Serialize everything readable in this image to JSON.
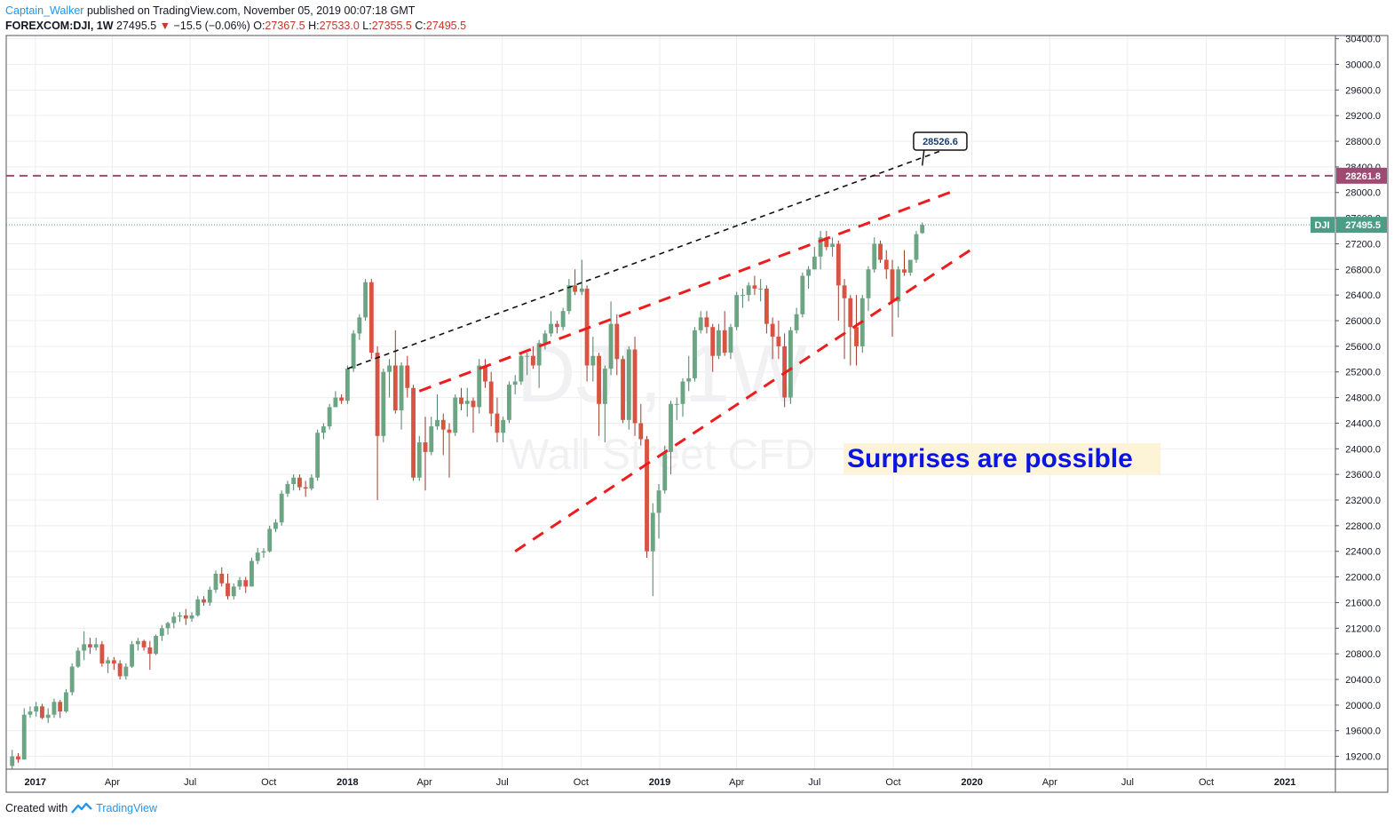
{
  "header": {
    "author": "Captain_Walker",
    "published": " published on TradingView.com, November 05, 2019 00:07:18 GMT",
    "symbol": "FOREXCOM:DJI, 1W",
    "last": "27495.5",
    "arrow": "▼",
    "change": "−15.5 (−0.06%)",
    "o_label": "O:",
    "o": "27367.5",
    "h_label": "H:",
    "h": "27533.0",
    "l_label": "L:",
    "l": "27355.5",
    "c_label": "C:",
    "c": "27495.5"
  },
  "footer": {
    "created": "Created with",
    "brand": "TradingView"
  },
  "colors": {
    "up": "#6ba583",
    "down": "#d75442",
    "trend_red": "#ee1c1c",
    "trend_black": "#111111",
    "resistance": "#9c4b73",
    "last_price": "#4c9d86",
    "annotation_bg": "#fdf3d6",
    "annotation_text": "#0a14e6"
  },
  "chart_data": {
    "type": "candlestick",
    "interval": "1W",
    "watermark": {
      "symbol": "DJI, 1W",
      "name": "Wall Street CFD"
    },
    "y_axis": {
      "min": 19000,
      "max": 30450,
      "ticks": [
        19200,
        19600,
        20000,
        20400,
        20800,
        21200,
        21600,
        22000,
        22400,
        22800,
        23200,
        23600,
        24000,
        24400,
        24800,
        25200,
        25600,
        26000,
        26400,
        26800,
        27200,
        27600,
        28000,
        28400,
        28800,
        29200,
        29600,
        30000,
        30400
      ]
    },
    "x_axis": {
      "start": "2016-11-28",
      "end": "2021-03-01",
      "ticks": [
        {
          "date": "2017-01-01",
          "label": "2017"
        },
        {
          "date": "2017-04-01",
          "label": "Apr"
        },
        {
          "date": "2017-07-01",
          "label": "Jul"
        },
        {
          "date": "2017-10-01",
          "label": "Oct"
        },
        {
          "date": "2018-01-01",
          "label": "2018"
        },
        {
          "date": "2018-04-01",
          "label": "Apr"
        },
        {
          "date": "2018-07-01",
          "label": "Jul"
        },
        {
          "date": "2018-10-01",
          "label": "Oct"
        },
        {
          "date": "2019-01-01",
          "label": "2019"
        },
        {
          "date": "2019-04-01",
          "label": "Apr"
        },
        {
          "date": "2019-07-01",
          "label": "Jul"
        },
        {
          "date": "2019-10-01",
          "label": "Oct"
        },
        {
          "date": "2020-01-01",
          "label": "2020"
        },
        {
          "date": "2020-04-01",
          "label": "Apr"
        },
        {
          "date": "2020-07-01",
          "label": "Jul"
        },
        {
          "date": "2020-10-01",
          "label": "Oct"
        },
        {
          "date": "2021-01-01",
          "label": "2021"
        }
      ]
    },
    "series_name": "DJI",
    "candles": [
      [
        "2016-12-05",
        19050,
        19300,
        19000,
        19200
      ],
      [
        "2016-12-12",
        19200,
        19250,
        19100,
        19150
      ],
      [
        "2016-12-19",
        19150,
        19950,
        19150,
        19850
      ],
      [
        "2016-12-26",
        19850,
        19980,
        19800,
        19900
      ],
      [
        "2017-01-02",
        19900,
        20050,
        19820,
        19980
      ],
      [
        "2017-01-09",
        19980,
        20020,
        19780,
        19800
      ],
      [
        "2017-01-16",
        19800,
        19950,
        19720,
        19850
      ],
      [
        "2017-01-23",
        19850,
        20100,
        19800,
        20050
      ],
      [
        "2017-01-30",
        20050,
        20080,
        19800,
        19900
      ],
      [
        "2017-02-06",
        19900,
        20250,
        19880,
        20200
      ],
      [
        "2017-02-13",
        20200,
        20650,
        20150,
        20600
      ],
      [
        "2017-02-20",
        20600,
        20900,
        20580,
        20850
      ],
      [
        "2017-02-27",
        20850,
        21150,
        20700,
        20950
      ],
      [
        "2017-03-06",
        20950,
        21050,
        20800,
        20900
      ],
      [
        "2017-03-13",
        20900,
        21050,
        20850,
        20950
      ],
      [
        "2017-03-20",
        20950,
        21000,
        20600,
        20650
      ],
      [
        "2017-03-27",
        20650,
        20750,
        20500,
        20700
      ],
      [
        "2017-04-03",
        20700,
        20750,
        20550,
        20650
      ],
      [
        "2017-04-10",
        20650,
        20700,
        20400,
        20450
      ],
      [
        "2017-04-17",
        20450,
        20650,
        20400,
        20600
      ],
      [
        "2017-04-24",
        20600,
        21000,
        20580,
        20950
      ],
      [
        "2017-05-01",
        20950,
        21050,
        20850,
        21000
      ],
      [
        "2017-05-08",
        21000,
        21020,
        20850,
        20900
      ],
      [
        "2017-05-15",
        20900,
        21000,
        20550,
        20800
      ],
      [
        "2017-05-22",
        20800,
        21100,
        20780,
        21080
      ],
      [
        "2017-05-29",
        21080,
        21250,
        21000,
        21200
      ],
      [
        "2017-06-05",
        21200,
        21300,
        21100,
        21280
      ],
      [
        "2017-06-12",
        21280,
        21450,
        21200,
        21380
      ],
      [
        "2017-06-19",
        21380,
        21450,
        21300,
        21400
      ],
      [
        "2017-06-26",
        21400,
        21500,
        21250,
        21350
      ],
      [
        "2017-07-03",
        21350,
        21450,
        21300,
        21400
      ],
      [
        "2017-07-10",
        21400,
        21700,
        21380,
        21650
      ],
      [
        "2017-07-17",
        21650,
        21700,
        21550,
        21600
      ],
      [
        "2017-07-24",
        21600,
        21850,
        21550,
        21800
      ],
      [
        "2017-07-31",
        21800,
        22100,
        21750,
        22050
      ],
      [
        "2017-08-07",
        22050,
        22150,
        21850,
        21900
      ],
      [
        "2017-08-14",
        21900,
        22050,
        21650,
        21700
      ],
      [
        "2017-08-21",
        21700,
        21900,
        21650,
        21850
      ],
      [
        "2017-08-28",
        21850,
        22000,
        21800,
        21950
      ],
      [
        "2017-09-04",
        21950,
        22000,
        21750,
        21850
      ],
      [
        "2017-09-11",
        21850,
        22300,
        21850,
        22250
      ],
      [
        "2017-09-18",
        22250,
        22450,
        22200,
        22380
      ],
      [
        "2017-09-25",
        22380,
        22450,
        22300,
        22400
      ],
      [
        "2017-10-02",
        22400,
        22800,
        22380,
        22750
      ],
      [
        "2017-10-09",
        22750,
        22900,
        22700,
        22850
      ],
      [
        "2017-10-16",
        22850,
        23350,
        22800,
        23300
      ],
      [
        "2017-10-23",
        23300,
        23500,
        23250,
        23450
      ],
      [
        "2017-10-30",
        23450,
        23600,
        23350,
        23550
      ],
      [
        "2017-11-06",
        23550,
        23600,
        23350,
        23400
      ],
      [
        "2017-11-13",
        23400,
        23500,
        23250,
        23380
      ],
      [
        "2017-11-20",
        23380,
        23600,
        23350,
        23550
      ],
      [
        "2017-11-27",
        23550,
        24300,
        23500,
        24250
      ],
      [
        "2017-12-04",
        24250,
        24400,
        24150,
        24350
      ],
      [
        "2017-12-11",
        24350,
        24700,
        24300,
        24650
      ],
      [
        "2017-12-18",
        24650,
        24900,
        24650,
        24800
      ],
      [
        "2017-12-25",
        24800,
        24850,
        24700,
        24750
      ],
      [
        "2018-01-01",
        24750,
        25300,
        24700,
        25250
      ],
      [
        "2018-01-08",
        25250,
        25850,
        25200,
        25800
      ],
      [
        "2018-01-15",
        25800,
        26100,
        25700,
        26050
      ],
      [
        "2018-01-22",
        26050,
        26650,
        26000,
        26600
      ],
      [
        "2018-01-29",
        26600,
        26650,
        25400,
        25500
      ],
      [
        "2018-02-05",
        25500,
        25600,
        23200,
        24200
      ],
      [
        "2018-02-12",
        24200,
        25250,
        24100,
        25200
      ],
      [
        "2018-02-19",
        25200,
        25400,
        24800,
        25300
      ],
      [
        "2018-02-26",
        25300,
        25850,
        24550,
        24600
      ],
      [
        "2018-03-05",
        24600,
        25350,
        24300,
        25300
      ],
      [
        "2018-03-12",
        25300,
        25450,
        24800,
        24950
      ],
      [
        "2018-03-19",
        24950,
        25000,
        23500,
        23550
      ],
      [
        "2018-03-26",
        23550,
        24200,
        23500,
        24100
      ],
      [
        "2018-04-02",
        24100,
        24500,
        23350,
        23950
      ],
      [
        "2018-04-09",
        23950,
        24500,
        23900,
        24350
      ],
      [
        "2018-04-16",
        24350,
        24850,
        24300,
        24450
      ],
      [
        "2018-04-23",
        24450,
        24550,
        23900,
        24300
      ],
      [
        "2018-04-30",
        24300,
        24400,
        23550,
        24250
      ],
      [
        "2018-05-07",
        24250,
        24850,
        24200,
        24800
      ],
      [
        "2018-05-14",
        24800,
        24950,
        24600,
        24700
      ],
      [
        "2018-05-21",
        24700,
        24950,
        24500,
        24750
      ],
      [
        "2018-05-28",
        24750,
        24800,
        24250,
        24650
      ],
      [
        "2018-06-04",
        24650,
        25400,
        24550,
        25300
      ],
      [
        "2018-06-11",
        25300,
        25400,
        24950,
        25050
      ],
      [
        "2018-06-18",
        25050,
        25200,
        24350,
        24550
      ],
      [
        "2018-06-25",
        24550,
        24800,
        24100,
        24250
      ],
      [
        "2018-07-02",
        24250,
        24500,
        24100,
        24450
      ],
      [
        "2018-07-09",
        24450,
        25050,
        24400,
        25000
      ],
      [
        "2018-07-16",
        25000,
        25150,
        24850,
        25050
      ],
      [
        "2018-07-23",
        25050,
        25500,
        25000,
        25450
      ],
      [
        "2018-07-30",
        25450,
        25500,
        25150,
        25450
      ],
      [
        "2018-08-06",
        25450,
        25600,
        25250,
        25300
      ],
      [
        "2018-08-13",
        25300,
        25700,
        24950,
        25650
      ],
      [
        "2018-08-20",
        25650,
        25850,
        25550,
        25800
      ],
      [
        "2018-08-27",
        25800,
        26150,
        25750,
        25950
      ],
      [
        "2018-09-03",
        25950,
        26000,
        25800,
        25900
      ],
      [
        "2018-09-10",
        25900,
        26200,
        25850,
        26150
      ],
      [
        "2018-09-17",
        26150,
        26650,
        26100,
        26550
      ],
      [
        "2018-09-24",
        26550,
        26800,
        26400,
        26450
      ],
      [
        "2018-10-02",
        26450,
        26950,
        26400,
        26500
      ],
      [
        "2018-10-08",
        26500,
        26550,
        25050,
        25300
      ],
      [
        "2018-10-15",
        25300,
        25750,
        25050,
        25450
      ],
      [
        "2018-10-22",
        25450,
        25500,
        24200,
        24700
      ],
      [
        "2018-10-29",
        24700,
        25300,
        24100,
        25250
      ],
      [
        "2018-11-05",
        25250,
        26300,
        25150,
        25950
      ],
      [
        "2018-11-12",
        25950,
        26100,
        25150,
        25400
      ],
      [
        "2018-11-19",
        25400,
        25450,
        24400,
        24450
      ],
      [
        "2018-11-26",
        24450,
        25600,
        24300,
        25550
      ],
      [
        "2018-12-03",
        25550,
        25750,
        24200,
        24400
      ],
      [
        "2018-12-10",
        24400,
        24700,
        24050,
        24150
      ],
      [
        "2018-12-17",
        24150,
        24200,
        22300,
        22400
      ],
      [
        "2018-12-24",
        22400,
        23150,
        21700,
        23000
      ],
      [
        "2018-12-31",
        23000,
        23450,
        22600,
        23350
      ],
      [
        "2019-01-07",
        23350,
        24050,
        23300,
        23950
      ],
      [
        "2019-01-14",
        23950,
        24750,
        23600,
        24700
      ],
      [
        "2019-01-21",
        24700,
        24800,
        24450,
        24700
      ],
      [
        "2019-01-28",
        24700,
        25100,
        24500,
        25050
      ],
      [
        "2019-02-04",
        25050,
        25450,
        24900,
        25100
      ],
      [
        "2019-02-11",
        25100,
        25900,
        25050,
        25850
      ],
      [
        "2019-02-18",
        25850,
        26150,
        25800,
        26050
      ],
      [
        "2019-02-25",
        26050,
        26150,
        25800,
        25900
      ],
      [
        "2019-03-04",
        25900,
        25950,
        25200,
        25450
      ],
      [
        "2019-03-11",
        25450,
        25950,
        25400,
        25850
      ],
      [
        "2019-03-18",
        25850,
        26150,
        25450,
        25500
      ],
      [
        "2019-03-25",
        25500,
        25950,
        25400,
        25900
      ],
      [
        "2019-04-01",
        25900,
        26450,
        25850,
        26400
      ],
      [
        "2019-04-08",
        26400,
        26500,
        26200,
        26400
      ],
      [
        "2019-04-15",
        26400,
        26600,
        26300,
        26550
      ],
      [
        "2019-04-22",
        26550,
        26700,
        26400,
        26500
      ],
      [
        "2019-04-29",
        26500,
        26650,
        26300,
        26500
      ],
      [
        "2019-05-06",
        26500,
        26550,
        25800,
        25950
      ],
      [
        "2019-05-13",
        25950,
        26050,
        25400,
        25750
      ],
      [
        "2019-05-20",
        25750,
        26000,
        25400,
        25600
      ],
      [
        "2019-05-27",
        25600,
        25800,
        24650,
        24800
      ],
      [
        "2019-06-03",
        24800,
        25900,
        24700,
        25850
      ],
      [
        "2019-06-10",
        25850,
        26200,
        25800,
        26100
      ],
      [
        "2019-06-17",
        26100,
        26750,
        26050,
        26700
      ],
      [
        "2019-06-24",
        26700,
        26850,
        26500,
        26800
      ],
      [
        "2019-07-01",
        26800,
        27150,
        26800,
        27000
      ],
      [
        "2019-07-08",
        27000,
        27400,
        26800,
        27300
      ],
      [
        "2019-07-15",
        27300,
        27400,
        27100,
        27150
      ],
      [
        "2019-07-22",
        27150,
        27300,
        27000,
        27200
      ],
      [
        "2019-07-29",
        27200,
        27250,
        26000,
        26550
      ],
      [
        "2019-08-05",
        26550,
        26650,
        25400,
        26350
      ],
      [
        "2019-08-12",
        26350,
        26400,
        25300,
        25900
      ],
      [
        "2019-08-19",
        25900,
        26400,
        25300,
        25600
      ],
      [
        "2019-08-26",
        25600,
        26400,
        25500,
        26350
      ],
      [
        "2019-09-02",
        26350,
        26850,
        26150,
        26800
      ],
      [
        "2019-09-09",
        26800,
        27300,
        26750,
        27200
      ],
      [
        "2019-09-16",
        27200,
        27250,
        26900,
        26950
      ],
      [
        "2019-09-23",
        26950,
        27100,
        26650,
        26800
      ],
      [
        "2019-09-30",
        26800,
        26950,
        25750,
        26300
      ],
      [
        "2019-10-07",
        26300,
        26850,
        26050,
        26800
      ],
      [
        "2019-10-14",
        26800,
        27100,
        26700,
        26750
      ],
      [
        "2019-10-21",
        26750,
        26950,
        26700,
        26950
      ],
      [
        "2019-10-28",
        26950,
        27400,
        26900,
        27350
      ],
      [
        "2019-11-04",
        27367.5,
        27533,
        27355.5,
        27495.5
      ]
    ],
    "horizontal_lines": [
      {
        "price": 28261.8,
        "label": "28261.8",
        "style": "dashed"
      }
    ],
    "last_price": {
      "price": 27495.5,
      "label": "27495.5",
      "symbol": "DJI"
    },
    "trend_lines": [
      {
        "style": "dashed-black",
        "from": [
          "2018-01-01",
          25250
        ],
        "to": [
          "2019-12-16",
          28750
        ]
      },
      {
        "style": "dashed-red",
        "from": [
          "2018-03-26",
          24900
        ],
        "to": [
          "2019-12-16",
          28050
        ]
      },
      {
        "style": "dashed-red",
        "from": [
          "2018-07-16",
          22400
        ],
        "to": [
          "2019-12-30",
          27100
        ]
      }
    ],
    "price_callout": {
      "label": "28526.6",
      "anchor": [
        "2019-11-04",
        28420
      ],
      "box": [
        "2019-11-25",
        28800
      ]
    },
    "annotation": {
      "text": "Surprises are possible"
    }
  }
}
